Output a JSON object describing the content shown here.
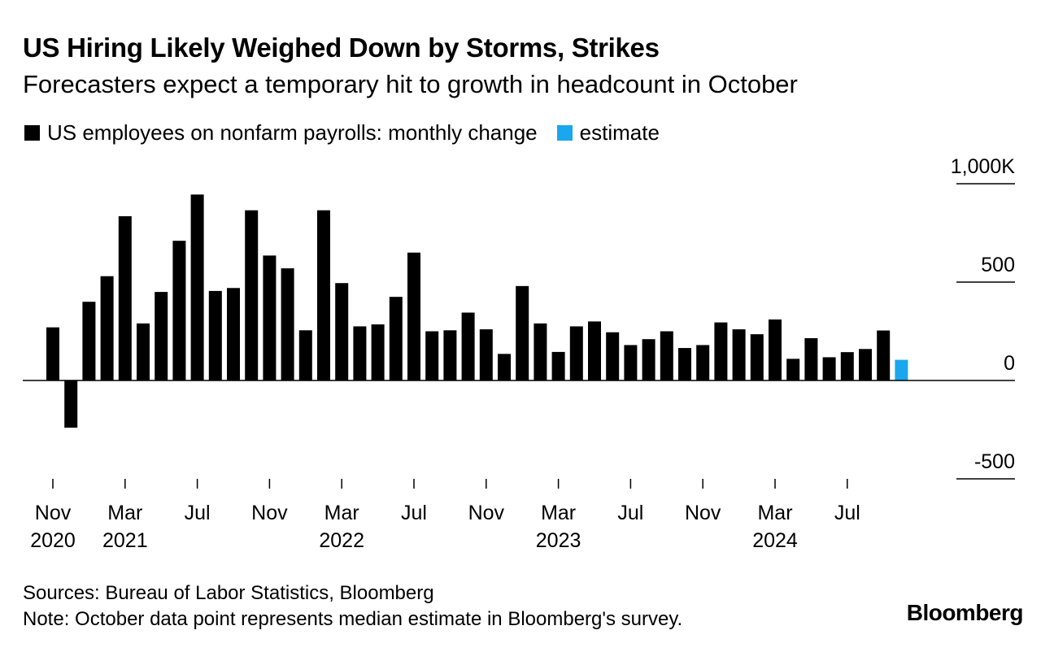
{
  "header": {
    "title": "US Hiring Likely Weighed Down by Storms, Strikes",
    "subtitle": "Forecasters expect a temporary hit to growth in headcount in October"
  },
  "legend": {
    "items": [
      {
        "label": "US employees on nonfarm payrolls: monthly change",
        "color": "#000000"
      },
      {
        "label": "estimate",
        "color": "#1aa7ee"
      }
    ]
  },
  "chart_data": {
    "type": "bar",
    "categories": [
      "Nov 2020",
      "Dec 2020",
      "Jan 2021",
      "Feb 2021",
      "Mar 2021",
      "Apr 2021",
      "May 2021",
      "Jun 2021",
      "Jul 2021",
      "Aug 2021",
      "Sep 2021",
      "Oct 2021",
      "Nov 2021",
      "Dec 2021",
      "Jan 2022",
      "Feb 2022",
      "Mar 2022",
      "Apr 2022",
      "May 2022",
      "Jun 2022",
      "Jul 2022",
      "Aug 2022",
      "Sep 2022",
      "Oct 2022",
      "Nov 2022",
      "Dec 2022",
      "Jan 2023",
      "Feb 2023",
      "Mar 2023",
      "Apr 2023",
      "May 2023",
      "Jun 2023",
      "Jul 2023",
      "Aug 2023",
      "Sep 2023",
      "Oct 2023",
      "Nov 2023",
      "Dec 2023",
      "Jan 2024",
      "Feb 2024",
      "Mar 2024",
      "Apr 2024",
      "May 2024",
      "Jun 2024",
      "Jul 2024",
      "Aug 2024",
      "Sep 2024",
      "Oct 2024"
    ],
    "series": [
      {
        "name": "US employees on nonfarm payrolls: monthly change",
        "values": [
          270,
          -240,
          400,
          530,
          835,
          290,
          450,
          710,
          945,
          455,
          470,
          865,
          635,
          570,
          255,
          865,
          495,
          275,
          285,
          425,
          650,
          250,
          255,
          345,
          260,
          135,
          480,
          290,
          145,
          275,
          300,
          245,
          180,
          210,
          250,
          165,
          180,
          295,
          260,
          235,
          310,
          110,
          215,
          118,
          144,
          160,
          254,
          null
        ]
      },
      {
        "name": "estimate",
        "values": [
          null,
          null,
          null,
          null,
          null,
          null,
          null,
          null,
          null,
          null,
          null,
          null,
          null,
          null,
          null,
          null,
          null,
          null,
          null,
          null,
          null,
          null,
          null,
          null,
          null,
          null,
          null,
          null,
          null,
          null,
          null,
          null,
          null,
          null,
          null,
          null,
          null,
          null,
          null,
          null,
          null,
          null,
          null,
          null,
          null,
          null,
          null,
          105
        ]
      }
    ],
    "ylim": [
      -500,
      1000
    ],
    "yticks": [
      1000,
      500,
      0,
      -500
    ],
    "ytick_labels": [
      "1,000K",
      "500",
      "0",
      "-500"
    ],
    "xtick_labels": [
      {
        "month": "Nov",
        "year": "2020",
        "index": 0
      },
      {
        "month": "Mar",
        "year": "2021",
        "index": 4
      },
      {
        "month": "Jul",
        "year": "",
        "index": 8
      },
      {
        "month": "Nov",
        "year": "",
        "index": 12
      },
      {
        "month": "Mar",
        "year": "2022",
        "index": 16
      },
      {
        "month": "Jul",
        "year": "",
        "index": 20
      },
      {
        "month": "Nov",
        "year": "",
        "index": 24
      },
      {
        "month": "Mar",
        "year": "2023",
        "index": 28
      },
      {
        "month": "Jul",
        "year": "",
        "index": 32
      },
      {
        "month": "Nov",
        "year": "",
        "index": 36
      },
      {
        "month": "Mar",
        "year": "2024",
        "index": 40
      },
      {
        "month": "Jul",
        "year": "",
        "index": 44
      }
    ],
    "grid": false,
    "legend_position": "top-left"
  },
  "footer": {
    "sources": "Sources: Bureau of Labor Statistics, Bloomberg",
    "note": "Note: October data point represents median estimate in Bloomberg's survey.",
    "brand": "Bloomberg"
  }
}
